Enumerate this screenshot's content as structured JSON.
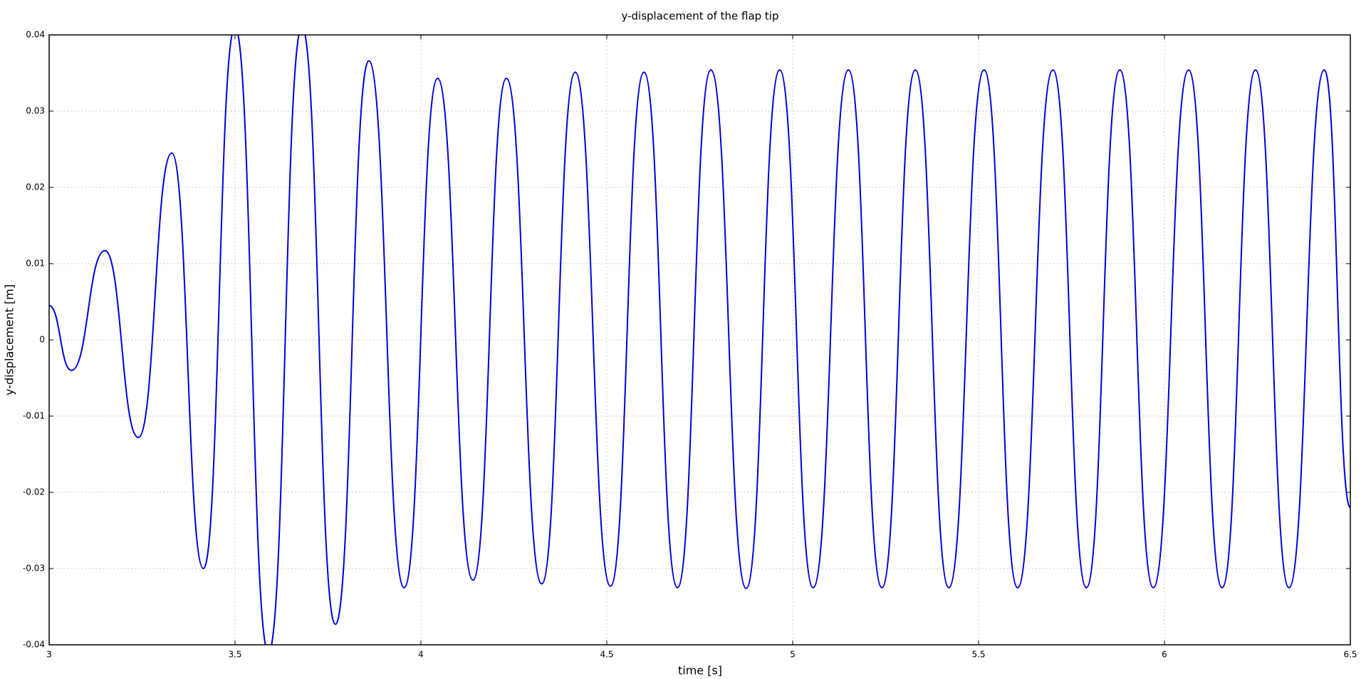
{
  "chart_data": {
    "type": "line",
    "title": "y-displacement of the flap tip",
    "x_label": "time [s]",
    "y_label": "y-displacement [m]",
    "xlim": [
      3,
      6.5
    ],
    "ylim": [
      -0.04,
      0.04
    ],
    "xticks": [
      3,
      3.5,
      4,
      4.5,
      5,
      5.5,
      6,
      6.5
    ],
    "yticks": [
      -0.04,
      -0.03,
      -0.02,
      -0.01,
      0,
      0.01,
      0.02,
      0.03,
      0.04
    ],
    "grid": true,
    "series": [
      {
        "name": "y-displacement",
        "color": "#0000dd",
        "x": [
          3.0,
          3.06,
          3.15,
          3.24,
          3.33,
          3.415,
          3.5,
          3.59,
          3.68,
          3.77,
          3.86,
          3.955,
          4.045,
          4.14,
          4.23,
          4.325,
          4.415,
          4.51,
          4.6,
          4.69,
          4.78,
          4.875,
          4.965,
          5.055,
          5.15,
          5.24,
          5.33,
          5.42,
          5.515,
          5.605,
          5.7,
          5.79,
          5.88,
          5.97,
          6.065,
          6.155,
          6.245,
          6.335,
          6.43,
          6.5
        ],
        "values": [
          0.0045,
          -0.004,
          0.0117,
          -0.0128,
          0.0245,
          -0.03,
          0.041,
          -0.041,
          0.041,
          -0.0373,
          0.0366,
          -0.0325,
          0.0343,
          -0.0315,
          0.0343,
          -0.032,
          0.0351,
          -0.0323,
          0.0351,
          -0.0325,
          0.0354,
          -0.0326,
          0.0354,
          -0.0325,
          0.0354,
          -0.0325,
          0.0354,
          -0.0325,
          0.0354,
          -0.0325,
          0.0354,
          -0.0325,
          0.0354,
          -0.0325,
          0.0354,
          -0.0325,
          0.0354,
          -0.0325,
          0.0354,
          -0.022
        ]
      }
    ]
  }
}
